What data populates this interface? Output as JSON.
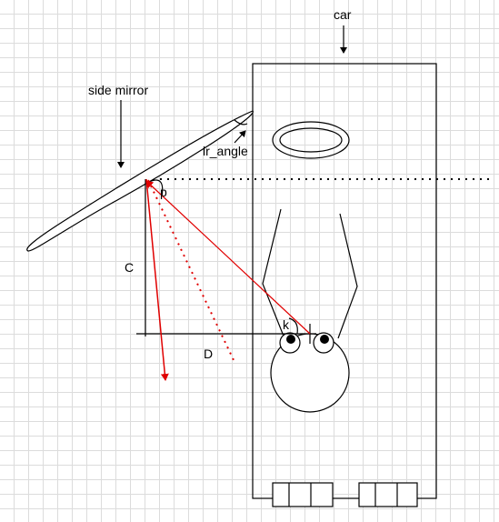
{
  "labels": {
    "car": "car",
    "side_mirror": "side mirror",
    "lr_angle": "lr_angle",
    "p": "p",
    "c": "C",
    "d": "D",
    "k": "k"
  },
  "colors": {
    "ink": "#000000",
    "ray": "#e00000",
    "grid": "#dcdcdc"
  }
}
